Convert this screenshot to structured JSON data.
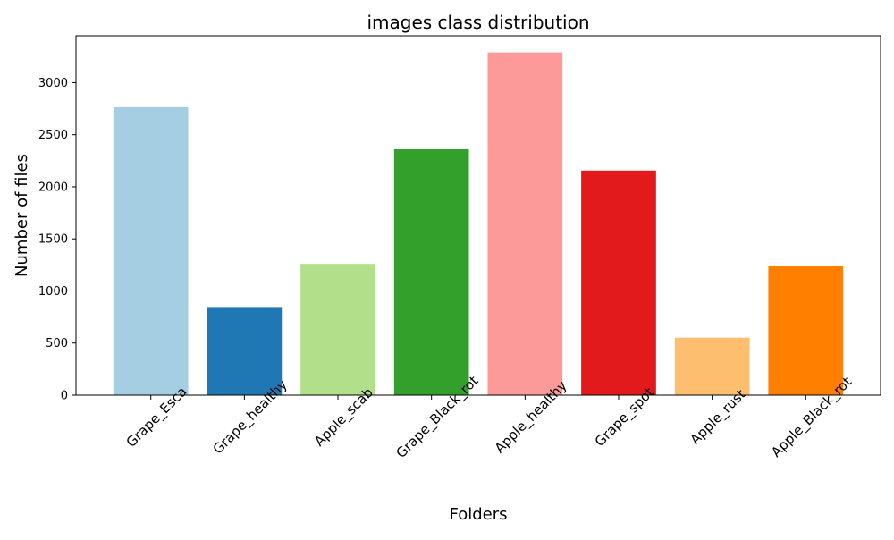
{
  "chart_data": {
    "type": "bar",
    "title": "images class distribution",
    "xlabel": "Folders",
    "ylabel": "Number of files",
    "categories": [
      "Grape_Esca",
      "Grape_healthy",
      "Apple_scab",
      "Grape_Black_rot",
      "Apple_healthy",
      "Grape_spot",
      "Apple_rust",
      "Apple_Black_rot"
    ],
    "values": [
      2764,
      846,
      1260,
      2360,
      3290,
      2156,
      552,
      1242
    ],
    "colors": [
      "#a6cee3",
      "#1f78b4",
      "#b2df8a",
      "#33a02c",
      "#fb9a99",
      "#e31a1c",
      "#fdbf6f",
      "#ff7f00"
    ],
    "ylim": [
      0,
      3450
    ],
    "yticks": [
      0,
      500,
      1000,
      1500,
      2000,
      2500,
      3000
    ],
    "grid": false,
    "legend": "none"
  }
}
